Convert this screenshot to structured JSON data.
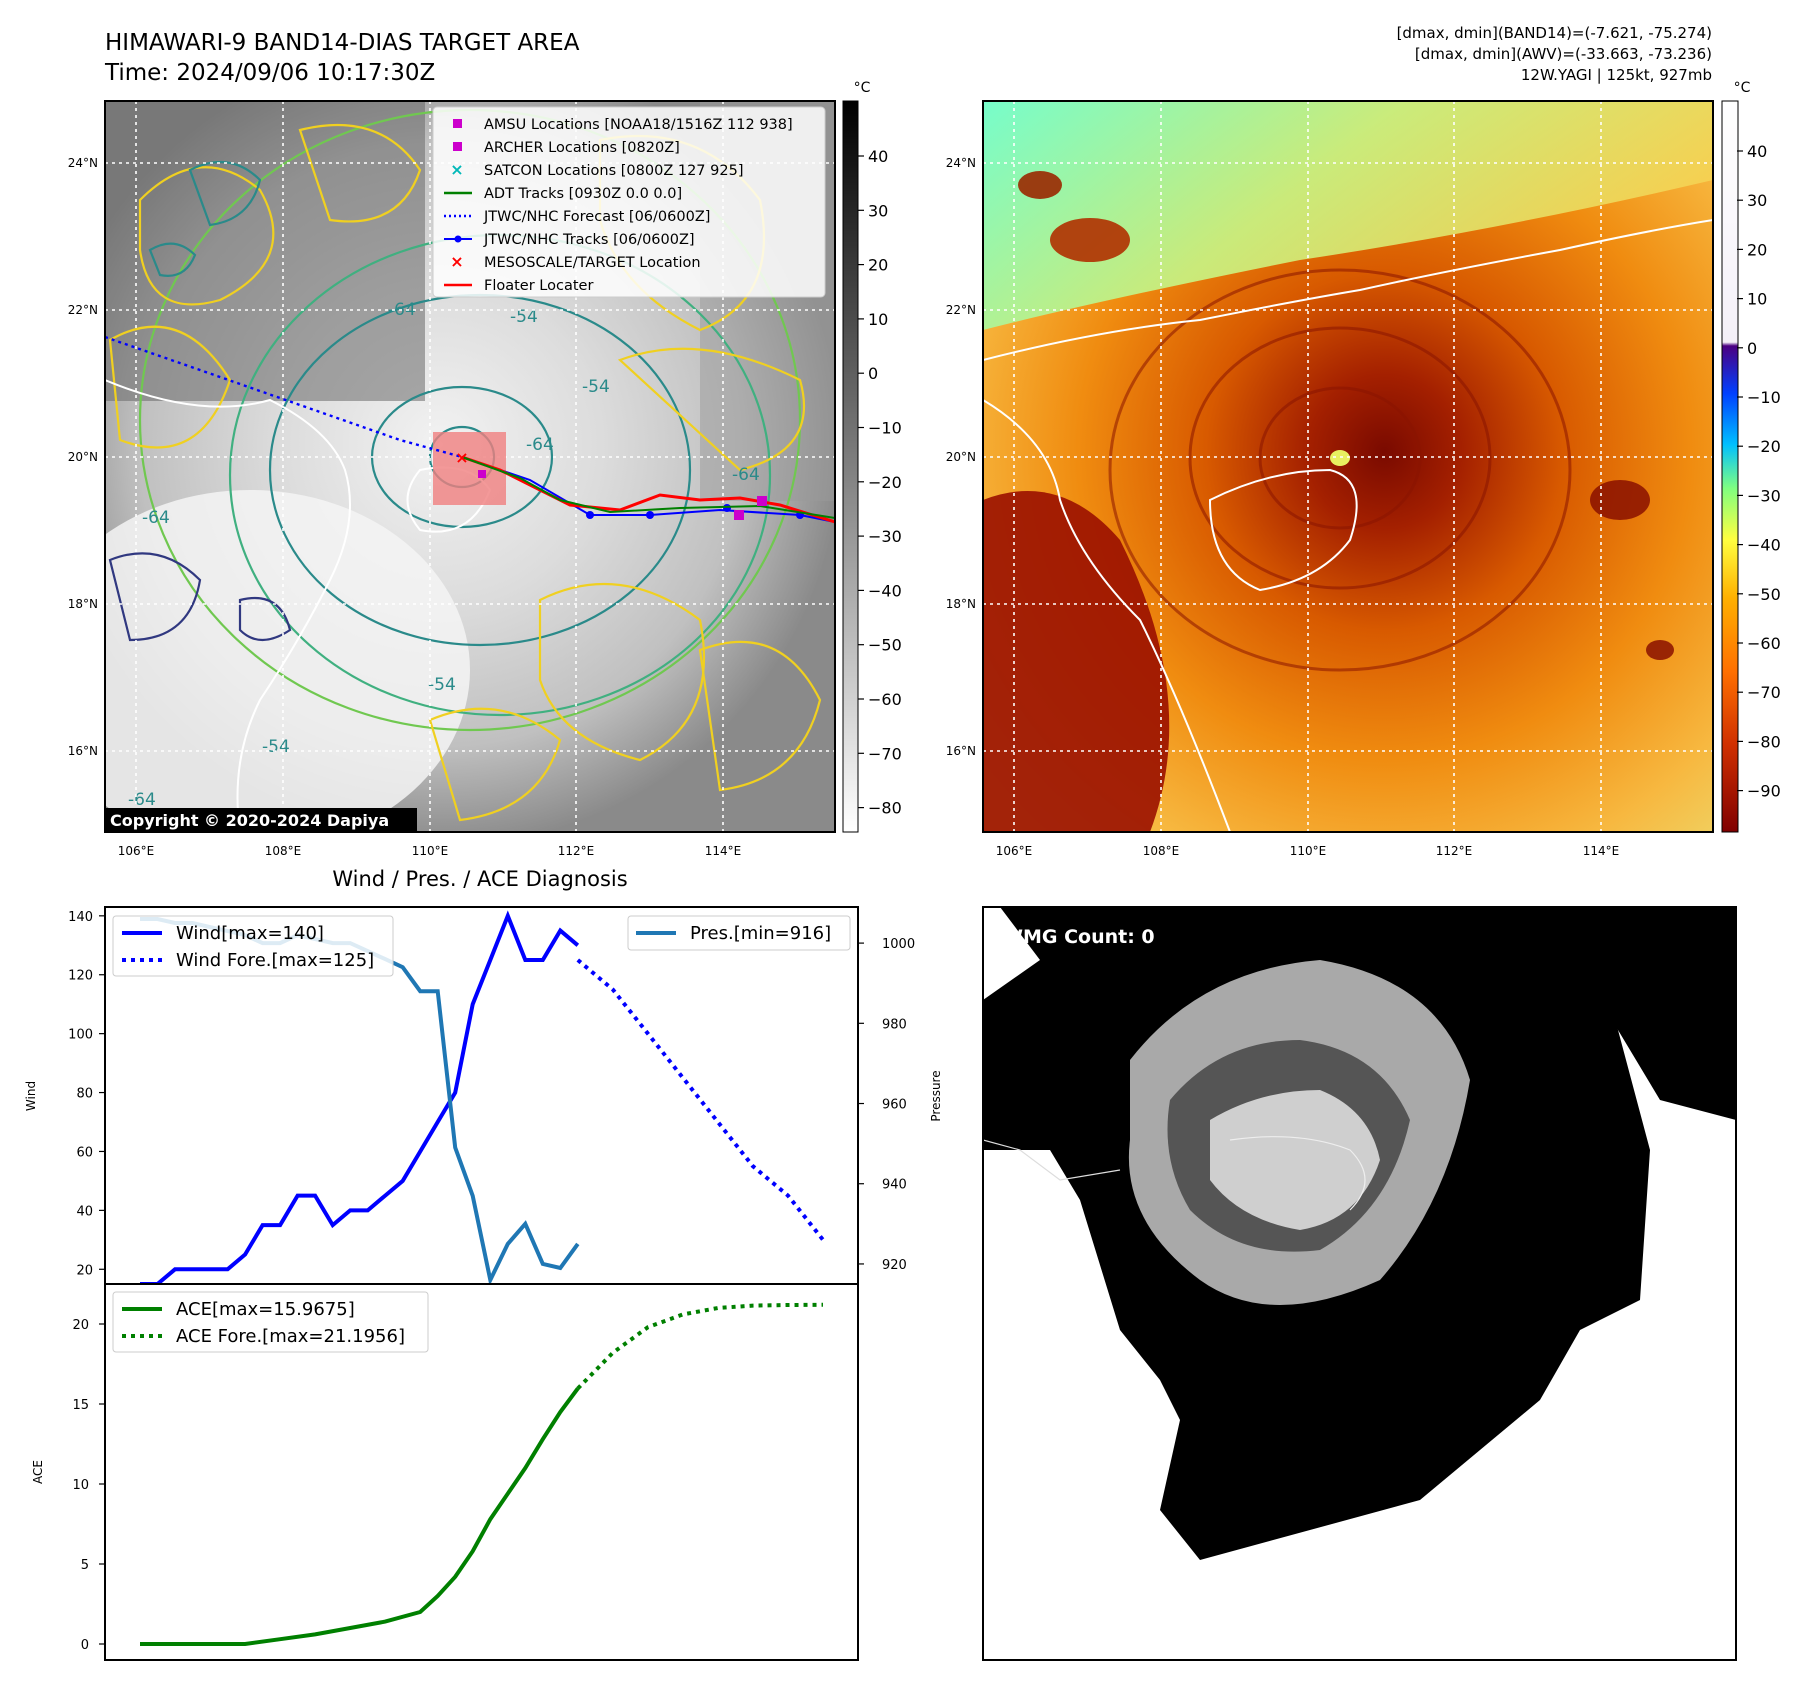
{
  "header": {
    "title_line1": "HIMAWARI-9 BAND14-DIAS TARGET AREA",
    "title_line2": "Time: 2024/09/06 10:17:30Z",
    "info_line1": "[dmax, dmin](BAND14)=(-7.621, -75.274)",
    "info_line2": "[dmax, dmin](AWV)=(-33.663, -73.236)",
    "info_line3": "12W.YAGI | 125kt, 927mb"
  },
  "colors": {
    "wind": "#0000ff",
    "pressure": "#1f77b4",
    "ace": "#008000",
    "floater": "#ff0000",
    "target_box": "#f08080",
    "adt": "#008000",
    "amsu": "#cc00cc",
    "satcon": "#00b8b8"
  },
  "map_ir": {
    "lat_labels": [
      "24°N",
      "22°N",
      "20°N",
      "18°N",
      "16°N"
    ],
    "lon_labels": [
      "106°E",
      "108°E",
      "110°E",
      "112°E",
      "114°E"
    ],
    "contour_labels": [
      "-64",
      "-54",
      "-64",
      "-54",
      "-64",
      "-54",
      "-54",
      "-64",
      "-64"
    ],
    "colorbar_unit": "°C",
    "colorbar_ticks": [
      "40",
      "30",
      "20",
      "10",
      "0",
      "−10",
      "−20",
      "−30",
      "−40",
      "−50",
      "−60",
      "−70",
      "−80"
    ],
    "copyright": "Copyright © 2020-2024 Dapiya",
    "legend": [
      {
        "label": "AMSU Locations [NOAA18/1516Z 112 938]",
        "icon": "square-marker",
        "color": "#cc00cc"
      },
      {
        "label": "ARCHER Locations [0820Z]",
        "icon": "square-marker",
        "color": "#cc00cc"
      },
      {
        "label": "SATCON Locations [0800Z 127 925]",
        "icon": "x-marker",
        "color": "#00b8b8"
      },
      {
        "label": "ADT Tracks [0930Z 0.0 0.0]",
        "icon": "solid-line",
        "color": "#008000"
      },
      {
        "label": "JTWC/NHC Forecast [06/0600Z]",
        "icon": "dotted-line",
        "color": "#0000ff"
      },
      {
        "label": "JTWC/NHC Tracks [06/0600Z]",
        "icon": "line-dot",
        "color": "#0000ff"
      },
      {
        "label": "MESOSCALE/TARGET Location",
        "icon": "x-marker",
        "color": "#ff0000"
      },
      {
        "label": "Floater Locater",
        "icon": "solid-line",
        "color": "#ff0000"
      }
    ]
  },
  "map_color": {
    "lat_labels": [
      "24°N",
      "22°N",
      "20°N",
      "18°N",
      "16°N"
    ],
    "lon_labels": [
      "106°E",
      "108°E",
      "110°E",
      "112°E",
      "114°E"
    ],
    "colorbar_unit": "°C",
    "colorbar_ticks": [
      "40",
      "30",
      "20",
      "10",
      "0",
      "−10",
      "−20",
      "−30",
      "−40",
      "−50",
      "−60",
      "−70",
      "−80",
      "−90"
    ]
  },
  "wmg": {
    "label": "WMG Count: 0"
  },
  "chart_data": [
    {
      "type": "line",
      "title": "Wind / Pres. / ACE Diagnosis",
      "ylabel": "Wind",
      "ylabel_right": "Pressure",
      "ylim": [
        15,
        143
      ],
      "ylim_right": [
        915,
        1009
      ],
      "y_ticks": [
        "20",
        "40",
        "60",
        "80",
        "100",
        "120",
        "140"
      ],
      "y_ticks_right": [
        "920",
        "940",
        "960",
        "980",
        "1000"
      ],
      "legend_left": [
        "Wind[max=140]",
        "Wind Fore.[max=125]"
      ],
      "legend_right": [
        "Pres.[min=916]"
      ],
      "series": [
        {
          "name": "Wind[max=140]",
          "style": "solid",
          "x": [
            0,
            1,
            2,
            3,
            4,
            5,
            6,
            7,
            8,
            9,
            10,
            11,
            12,
            13,
            14,
            15,
            16,
            17,
            18,
            19,
            20,
            21,
            22,
            23,
            24,
            25
          ],
          "values": [
            15,
            15,
            20,
            20,
            20,
            20,
            25,
            35,
            35,
            45,
            45,
            35,
            40,
            40,
            45,
            50,
            60,
            70,
            80,
            110,
            125,
            140,
            125,
            125,
            135,
            130
          ]
        },
        {
          "name": "Wind Fore.[max=125]",
          "style": "dotted",
          "x": [
            25,
            27,
            29,
            31,
            33,
            35,
            37,
            39
          ],
          "values": [
            125,
            115,
            100,
            85,
            70,
            55,
            45,
            30
          ]
        },
        {
          "name": "Pres.[min=916]",
          "style": "solid",
          "axis": "right",
          "x": [
            0,
            1,
            2,
            3,
            4,
            5,
            6,
            7,
            8,
            9,
            10,
            11,
            12,
            13,
            14,
            15,
            16,
            17,
            18,
            19,
            20,
            21,
            22,
            23,
            24,
            25
          ],
          "values": [
            1006,
            1006,
            1005,
            1005,
            1004,
            1003,
            1002,
            1000,
            1000,
            1002,
            1001,
            1000,
            1000,
            998,
            996,
            994,
            988,
            988,
            949,
            937,
            916,
            925,
            930,
            920,
            919,
            925
          ]
        }
      ]
    },
    {
      "type": "line",
      "ylabel": "ACE",
      "ylim": [
        -1,
        22.5
      ],
      "y_ticks": [
        "0",
        "5",
        "10",
        "15",
        "20"
      ],
      "legend": [
        "ACE[max=15.9675]",
        "ACE Fore.[max=21.1956]"
      ],
      "series": [
        {
          "name": "ACE[max=15.9675]",
          "style": "solid",
          "x": [
            0,
            2,
            4,
            6,
            8,
            10,
            12,
            14,
            16,
            17,
            18,
            19,
            20,
            21,
            22,
            23,
            24,
            25
          ],
          "values": [
            0,
            0,
            0,
            0,
            0.3,
            0.6,
            1.0,
            1.4,
            2.0,
            3.0,
            4.2,
            5.8,
            7.8,
            9.4,
            11.0,
            12.8,
            14.5,
            15.97
          ]
        },
        {
          "name": "ACE Fore.[max=21.1956]",
          "style": "dotted",
          "x": [
            25,
            27,
            29,
            31,
            33,
            35,
            37,
            39
          ],
          "values": [
            15.97,
            18.2,
            19.8,
            20.6,
            21.0,
            21.15,
            21.19,
            21.2
          ]
        }
      ]
    }
  ]
}
